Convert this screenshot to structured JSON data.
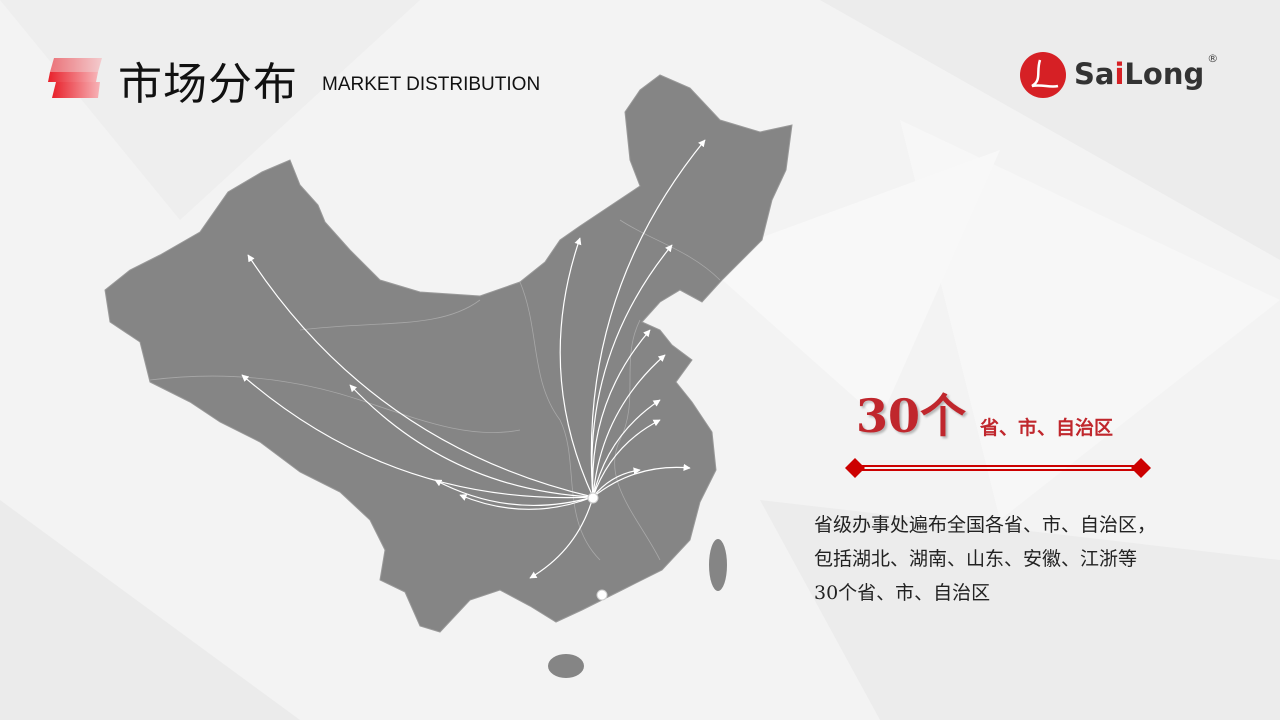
{
  "header": {
    "title_cn": "市场分布",
    "title_en": "MARKET DISTRIBUTION"
  },
  "logo": {
    "brand_prefix": "Sa",
    "brand_i": "i",
    "brand_suffix": "Long",
    "registered": "®"
  },
  "highlight": {
    "count": "30个",
    "unit": "省、市、自治区"
  },
  "description": {
    "lines": [
      "省级办事处遍布全国各省、市、自治区，",
      "包括湖北、湖南、山东、安徽、江浙等",
      "30个省、市、自治区"
    ]
  },
  "colors": {
    "accent": "#c0272d",
    "map_fill": "#858585",
    "arrow": "#ffffff"
  },
  "icons": {
    "title": "red-stripes-icon",
    "logo": "sailong-logo-icon"
  }
}
